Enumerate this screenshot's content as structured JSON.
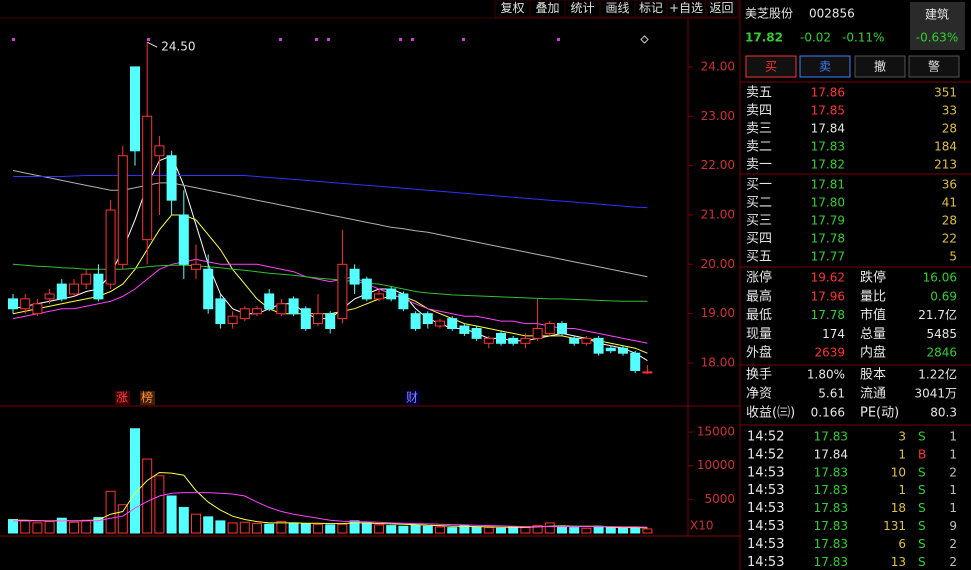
{
  "toolbar": [
    "复权",
    "叠加",
    "统计",
    "画线",
    "标记",
    "+自选",
    "返回"
  ],
  "chart_data": [
    {
      "type": "candlestick",
      "up_color": "#ff3232",
      "down_color": "#54ffff",
      "high_label": "24.50",
      "event_labels": [
        "涨",
        "榜",
        "财"
      ],
      "ylim": [
        17.15,
        24.95
      ],
      "yticks": [
        {
          "value": 18,
          "label": "18.00"
        },
        {
          "value": 19,
          "label": "19.00"
        },
        {
          "value": 20,
          "label": "20.00"
        },
        {
          "value": 21,
          "label": "21.00"
        },
        {
          "value": 22,
          "label": "22.00"
        },
        {
          "value": 23,
          "label": "23.00"
        },
        {
          "value": 24,
          "label": "24.00"
        }
      ],
      "open": [
        19.3,
        19.1,
        19.0,
        19.3,
        19.6,
        19.4,
        19.6,
        19.8,
        19.6,
        20.0,
        24.0,
        20.5,
        22.2,
        22.2,
        21.0,
        19.9,
        19.9,
        19.3,
        18.8,
        18.9,
        19.0,
        19.4,
        19.0,
        19.3,
        19.1,
        18.8,
        19.0,
        18.9,
        19.9,
        19.7,
        19.3,
        19.5,
        19.4,
        19.0,
        19.0,
        18.75,
        18.9,
        18.75,
        18.7,
        18.4,
        18.6,
        18.5,
        18.4,
        18.5,
        18.6,
        18.8,
        18.5,
        18.4,
        18.5,
        18.3,
        18.3,
        18.2,
        17.8
      ],
      "high": [
        19.4,
        19.4,
        19.3,
        19.5,
        19.7,
        19.7,
        19.9,
        20.0,
        21.3,
        22.4,
        24.0,
        24.5,
        22.6,
        22.3,
        21.5,
        20.4,
        20.2,
        19.4,
        19.05,
        19.15,
        19.15,
        19.5,
        19.3,
        19.35,
        19.15,
        19.4,
        19.05,
        20.7,
        20.0,
        19.75,
        19.5,
        19.55,
        19.45,
        19.05,
        19.05,
        18.9,
        18.95,
        18.8,
        18.75,
        18.55,
        18.65,
        18.55,
        18.6,
        19.3,
        18.85,
        18.85,
        18.55,
        18.55,
        18.55,
        18.35,
        18.35,
        18.25,
        17.96
      ],
      "low": [
        19.0,
        19.0,
        18.95,
        19.2,
        19.25,
        19.35,
        19.5,
        19.25,
        19.5,
        19.9,
        22.0,
        20.0,
        21.0,
        21.0,
        19.7,
        19.7,
        19.0,
        18.7,
        18.7,
        18.85,
        18.95,
        19.05,
        18.95,
        18.95,
        18.65,
        18.75,
        18.6,
        18.8,
        19.4,
        19.25,
        19.25,
        19.25,
        19.05,
        18.65,
        18.7,
        18.7,
        18.65,
        18.55,
        18.45,
        18.3,
        18.35,
        18.35,
        18.3,
        18.45,
        18.55,
        18.55,
        18.35,
        18.35,
        18.15,
        18.2,
        18.15,
        17.8,
        17.78
      ],
      "close": [
        19.1,
        19.3,
        19.2,
        19.4,
        19.3,
        19.6,
        19.8,
        19.3,
        21.1,
        22.2,
        22.3,
        23.0,
        22.4,
        21.3,
        20.0,
        20.0,
        19.1,
        18.8,
        18.95,
        19.1,
        19.1,
        19.1,
        19.2,
        19.0,
        18.7,
        19.0,
        18.7,
        20.0,
        19.6,
        19.3,
        19.4,
        19.3,
        19.1,
        18.7,
        18.8,
        18.85,
        18.7,
        18.6,
        18.5,
        18.5,
        18.4,
        18.4,
        18.5,
        18.7,
        18.8,
        18.6,
        18.4,
        18.5,
        18.2,
        18.25,
        18.2,
        17.85,
        17.82
      ],
      "lines": [
        {
          "color": "#ffffff",
          "values": [
            19.1,
            19.15,
            19.2,
            19.25,
            19.3,
            19.35,
            19.45,
            19.5,
            19.8,
            20.3,
            20.9,
            21.6,
            22.1,
            22.2,
            21.6,
            20.8,
            20.0,
            19.4,
            19.1,
            19.0,
            19.0,
            19.1,
            19.2,
            19.2,
            19.0,
            18.9,
            18.9,
            19.1,
            19.3,
            19.4,
            19.5,
            19.5,
            19.4,
            19.1,
            18.9,
            18.8,
            18.7,
            18.7,
            18.6,
            18.5,
            18.5,
            18.45,
            18.45,
            18.5,
            18.55,
            18.6,
            18.55,
            18.5,
            18.4,
            18.35,
            18.3,
            18.2,
            18.05
          ]
        },
        {
          "color": "#ffff40",
          "values": [
            19.0,
            19.05,
            19.1,
            19.15,
            19.2,
            19.25,
            19.3,
            19.35,
            19.45,
            19.6,
            19.9,
            20.3,
            20.7,
            21.0,
            21.0,
            20.9,
            20.6,
            20.3,
            19.9,
            19.6,
            19.3,
            19.1,
            19.0,
            19.0,
            19.0,
            19.0,
            19.0,
            19.05,
            19.1,
            19.2,
            19.3,
            19.35,
            19.35,
            19.25,
            19.1,
            19.0,
            18.9,
            18.8,
            18.75,
            18.7,
            18.65,
            18.6,
            18.55,
            18.55,
            18.55,
            18.55,
            18.5,
            18.5,
            18.45,
            18.4,
            18.35,
            18.3,
            18.2
          ]
        },
        {
          "color": "#ff40ff",
          "values": [
            18.9,
            18.95,
            19.0,
            19.05,
            19.1,
            19.1,
            19.15,
            19.2,
            19.25,
            19.35,
            19.5,
            19.7,
            19.9,
            20.0,
            20.05,
            20.1,
            20.05,
            20.0,
            20.0,
            20.0,
            20.0,
            19.95,
            19.9,
            19.85,
            19.75,
            19.7,
            19.65,
            19.7,
            19.75,
            19.6,
            19.5,
            19.4,
            19.3,
            19.2,
            19.1,
            19.05,
            19.0,
            18.95,
            18.95,
            18.9,
            18.85,
            18.85,
            18.8,
            18.8,
            18.75,
            18.7,
            18.7,
            18.65,
            18.6,
            18.55,
            18.5,
            18.45,
            18.4
          ]
        },
        {
          "color": "#30c030",
          "values": [
            20.0,
            19.98,
            19.96,
            19.95,
            19.93,
            19.92,
            19.9,
            19.9,
            19.9,
            19.9,
            19.92,
            19.95,
            19.97,
            19.98,
            19.98,
            19.97,
            19.95,
            19.93,
            19.9,
            19.88,
            19.85,
            19.82,
            19.8,
            19.78,
            19.75,
            19.72,
            19.7,
            19.68,
            19.65,
            19.62,
            19.6,
            19.55,
            19.5,
            19.45,
            19.42,
            19.4,
            19.38,
            19.37,
            19.36,
            19.35,
            19.34,
            19.33,
            19.32,
            19.31,
            19.3,
            19.3,
            19.29,
            19.28,
            19.27,
            19.26,
            19.25,
            19.25,
            19.25
          ]
        },
        {
          "color": "#b0b0b0",
          "values": [
            21.9,
            21.85,
            21.8,
            21.75,
            21.7,
            21.65,
            21.6,
            21.55,
            21.5,
            21.5,
            21.55,
            21.6,
            21.65,
            21.65,
            21.6,
            21.55,
            21.5,
            21.45,
            21.4,
            21.35,
            21.3,
            21.25,
            21.2,
            21.15,
            21.1,
            21.05,
            21.0,
            20.95,
            20.9,
            20.85,
            20.8,
            20.75,
            20.72,
            20.68,
            20.65,
            20.6,
            20.55,
            20.5,
            20.45,
            20.4,
            20.35,
            20.3,
            20.25,
            20.2,
            20.15,
            20.1,
            20.05,
            20.0,
            19.95,
            19.9,
            19.85,
            19.8,
            19.75
          ]
        },
        {
          "color": "#3030ff",
          "values": [
            21.78,
            21.78,
            21.78,
            21.78,
            21.78,
            21.79,
            21.8,
            21.8,
            21.8,
            21.8,
            21.8,
            21.8,
            21.8,
            21.8,
            21.8,
            21.8,
            21.8,
            21.8,
            21.8,
            21.8,
            21.78,
            21.76,
            21.74,
            21.72,
            21.7,
            21.68,
            21.66,
            21.64,
            21.62,
            21.6,
            21.58,
            21.56,
            21.54,
            21.52,
            21.5,
            21.48,
            21.46,
            21.44,
            21.42,
            21.4,
            21.38,
            21.36,
            21.34,
            21.32,
            21.3,
            21.28,
            21.26,
            21.24,
            21.22,
            21.2,
            21.18,
            21.16,
            21.15
          ]
        }
      ]
    },
    {
      "type": "bar",
      "scale_label": "X10",
      "ylim": [
        0,
        16800
      ],
      "yticks": [
        5000,
        10000,
        15000
      ],
      "values": [
        2000,
        1800,
        1500,
        1700,
        2200,
        1600,
        1900,
        2300,
        6200,
        4200,
        15500,
        11000,
        8500,
        5500,
        3800,
        2800,
        2400,
        1800,
        1500,
        1600,
        1400,
        1300,
        1700,
        1500,
        1400,
        1300,
        1200,
        1300,
        1800,
        1500,
        1200,
        1100,
        1000,
        1200,
        1000,
        900,
        800,
        1100,
        900,
        800,
        700,
        900,
        800,
        1100,
        1500,
        900,
        800,
        700,
        1000,
        800,
        700,
        900,
        600
      ],
      "lines": [
        {
          "color": "#ffff40",
          "values": [
            1900,
            1900,
            1850,
            1800,
            1850,
            1800,
            1850,
            1950,
            2800,
            3200,
            5900,
            7800,
            9000,
            8900,
            8600,
            6300,
            4600,
            3400,
            2500,
            2000,
            1700,
            1500,
            1500,
            1500,
            1450,
            1450,
            1400,
            1400,
            1500,
            1500,
            1400,
            1350,
            1300,
            1250,
            1150,
            1100,
            1000,
            1000,
            950,
            900,
            850,
            850,
            850,
            900,
            1000,
            1050,
            1000,
            1000,
            1000,
            850,
            800,
            820,
            760
          ]
        },
        {
          "color": "#ff40ff",
          "values": [
            1800,
            1800,
            1800,
            1800,
            1800,
            1800,
            1800,
            1850,
            2200,
            2500,
            3700,
            4700,
            5500,
            5900,
            6000,
            6000,
            6000,
            5900,
            5800,
            5500,
            4600,
            3800,
            3200,
            2800,
            2500,
            2200,
            1900,
            1750,
            1700,
            1650,
            1600,
            1500,
            1450,
            1400,
            1350,
            1300,
            1250,
            1200,
            1150,
            1100,
            1050,
            1000,
            950,
            950,
            950,
            950,
            950,
            950,
            950,
            950,
            900,
            900,
            850
          ]
        }
      ]
    }
  ],
  "panel": {
    "name": "美芝股份",
    "code": "002856",
    "sector": "建筑",
    "sector_change": "-0.63%",
    "price": "17.82",
    "change": "-0.02",
    "change_pct": "-0.11%",
    "buttons": [
      "买",
      "卖",
      "撤",
      "警"
    ],
    "asks": [
      {
        "label": "卖五",
        "price": "17.86",
        "volume": "351",
        "color": "#ff3232"
      },
      {
        "label": "卖四",
        "price": "17.85",
        "volume": "33",
        "color": "#ff3232"
      },
      {
        "label": "卖三",
        "price": "17.84",
        "volume": "28",
        "color": "#e6e6e6"
      },
      {
        "label": "卖二",
        "price": "17.83",
        "volume": "184",
        "color": "#30d030"
      },
      {
        "label": "卖一",
        "price": "17.82",
        "volume": "213",
        "color": "#30d030"
      }
    ],
    "bids": [
      {
        "label": "买一",
        "price": "17.81",
        "volume": "36",
        "color": "#30d030"
      },
      {
        "label": "买二",
        "price": "17.80",
        "volume": "41",
        "color": "#30d030"
      },
      {
        "label": "买三",
        "price": "17.79",
        "volume": "28",
        "color": "#30d030"
      },
      {
        "label": "买四",
        "price": "17.78",
        "volume": "22",
        "color": "#30d030"
      },
      {
        "label": "买五",
        "price": "17.77",
        "volume": "5",
        "color": "#30d030"
      }
    ],
    "stats": [
      [
        {
          "label": "涨停",
          "value": "19.62",
          "color": "#ff3232"
        },
        {
          "label": "跌停",
          "value": "16.06",
          "color": "#30d030"
        }
      ],
      [
        {
          "label": "最高",
          "value": "17.96",
          "color": "#ff3232"
        },
        {
          "label": "量比",
          "value": "0.69",
          "color": "#30d030"
        }
      ],
      [
        {
          "label": "最低",
          "value": "17.78",
          "color": "#30d030"
        },
        {
          "label": "市值",
          "value": "21.7亿",
          "color": "#e6e6e6"
        }
      ],
      [
        {
          "label": "现量",
          "value": "174",
          "color": "#e6e6e6"
        },
        {
          "label": "总量",
          "value": "5485",
          "color": "#e6e6e6"
        }
      ],
      [
        {
          "label": "外盘",
          "value": "2639",
          "color": "#ff3232"
        },
        {
          "label": "内盘",
          "value": "2846",
          "color": "#30d030"
        }
      ]
    ],
    "finance": [
      [
        {
          "label": "换手",
          "value": "1.80%",
          "color": "#e6e6e6"
        },
        {
          "label": "股本",
          "value": "1.22亿",
          "color": "#e6e6e6"
        }
      ],
      [
        {
          "label": "净资",
          "value": "5.61",
          "color": "#e6e6e6"
        },
        {
          "label": "流通",
          "value": "3041万",
          "color": "#e6e6e6"
        }
      ],
      [
        {
          "label": "收益(㈢)",
          "value": "0.166",
          "color": "#e6e6e6"
        },
        {
          "label": "PE(动)",
          "value": "80.3",
          "color": "#e6e6e6"
        }
      ]
    ],
    "trades": [
      {
        "time": "14:52",
        "price": "17.83",
        "volume": "3",
        "side": "S",
        "count": "1",
        "price_color": "#30d030",
        "side_color": "#30d030"
      },
      {
        "time": "14:52",
        "price": "17.84",
        "volume": "1",
        "side": "B",
        "count": "1",
        "price_color": "#e6e6e6",
        "side_color": "#ff3232"
      },
      {
        "time": "14:53",
        "price": "17.83",
        "volume": "10",
        "side": "S",
        "count": "2",
        "price_color": "#30d030",
        "side_color": "#30d030"
      },
      {
        "time": "14:53",
        "price": "17.83",
        "volume": "1",
        "side": "S",
        "count": "1",
        "price_color": "#30d030",
        "side_color": "#30d030"
      },
      {
        "time": "14:53",
        "price": "17.83",
        "volume": "18",
        "side": "S",
        "count": "1",
        "price_color": "#30d030",
        "side_color": "#30d030"
      },
      {
        "time": "14:53",
        "price": "17.83",
        "volume": "131",
        "side": "S",
        "count": "9",
        "price_color": "#30d030",
        "side_color": "#30d030"
      },
      {
        "time": "14:53",
        "price": "17.83",
        "volume": "6",
        "side": "S",
        "count": "2",
        "price_color": "#30d030",
        "side_color": "#30d030"
      },
      {
        "time": "14:53",
        "price": "17.83",
        "volume": "13",
        "side": "S",
        "count": "2",
        "price_color": "#30d030",
        "side_color": "#30d030"
      }
    ]
  }
}
